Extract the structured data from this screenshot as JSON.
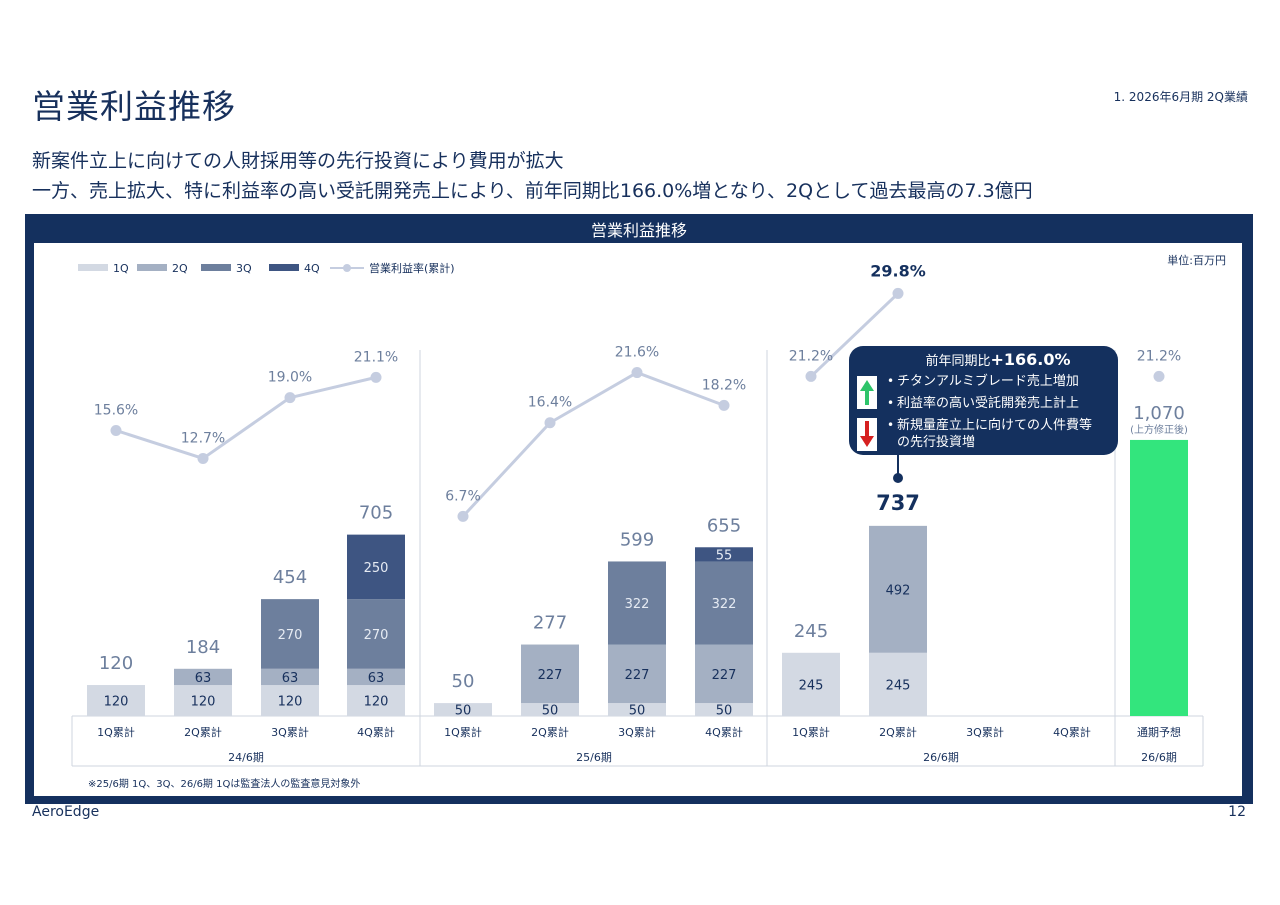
{
  "page": {
    "title": "営業利益推移",
    "section": "1. 2026年6月期 2Q業績",
    "subtitle_line1": "新案件立上に向けての人財採用等の先行投資により費用が拡大",
    "subtitle_line2": "一方、売上拡大、特に利益率の高い受託開発売上により、前年同期比166.0%増となり、2Qとして過去最高の7.3億円",
    "panel_title": "営業利益推移",
    "unit": "単位:百万円",
    "footnote": "※25/6期 1Q、3Q、26/6期 1Qは監査法人の監査意見対象外",
    "company": "AeroEdge",
    "page_number": "12"
  },
  "colors": {
    "1Q": "#d3d9e3",
    "2Q": "#a4b0c3",
    "3Q": "#6d7f9d",
    "4Q": "#3e5582",
    "line": "#c5cde0",
    "forecast": "#33e57d",
    "navy": "#14305e"
  },
  "callout": {
    "title_prefix": "前年同期比",
    "title_value": "+166.0%",
    "items": [
      {
        "icon": "up-arrow-icon",
        "text": "チタンアルミブレード売上増加"
      },
      {
        "icon": "none",
        "text": "利益率の高い受託開発売上計上"
      },
      {
        "icon": "down-arrow-icon",
        "text": "新規量産立上に向けての人件費等"
      },
      {
        "icon": "none",
        "text": "の先行投資増"
      }
    ]
  },
  "chart_data": {
    "type": "bar",
    "stacked": true,
    "legend": [
      "1Q",
      "2Q",
      "3Q",
      "4Q",
      "営業利益率(累計)"
    ],
    "legend_position": "top-left",
    "groups": [
      {
        "label": "24/6期",
        "categories": [
          "1Q累計",
          "2Q累計",
          "3Q累計",
          "4Q累計"
        ]
      },
      {
        "label": "25/6期",
        "categories": [
          "1Q累計",
          "2Q累計",
          "3Q累計",
          "4Q累計"
        ]
      },
      {
        "label": "26/6期",
        "categories": [
          "1Q累計",
          "2Q累計",
          "3Q累計",
          "4Q累計"
        ]
      },
      {
        "label": "26/6期",
        "categories": [
          "通期予想"
        ]
      }
    ],
    "bars": [
      {
        "group": 0,
        "segments": [
          120
        ],
        "total": "120"
      },
      {
        "group": 0,
        "segments": [
          120,
          63
        ],
        "total": "184"
      },
      {
        "group": 0,
        "segments": [
          120,
          63,
          270
        ],
        "total": "454"
      },
      {
        "group": 0,
        "segments": [
          120,
          63,
          270,
          250
        ],
        "total": "705"
      },
      {
        "group": 1,
        "segments": [
          50
        ],
        "total": "50"
      },
      {
        "group": 1,
        "segments": [
          50,
          227
        ],
        "total": "277"
      },
      {
        "group": 1,
        "segments": [
          50,
          227,
          322
        ],
        "total": "599"
      },
      {
        "group": 1,
        "segments": [
          50,
          227,
          322,
          55
        ],
        "total": "655"
      },
      {
        "group": 2,
        "segments": [
          245
        ],
        "total": "245"
      },
      {
        "group": 2,
        "segments": [
          245,
          492
        ],
        "total": "737"
      },
      {
        "group": 2,
        "segments": [],
        "total": ""
      },
      {
        "group": 2,
        "segments": [],
        "total": ""
      },
      {
        "group": 3,
        "segments": [
          1070
        ],
        "total": "1,070",
        "forecast": true,
        "note": "(上方修正後)"
      }
    ],
    "margin_series": {
      "name": "営業利益率(累計)",
      "values": [
        15.6,
        12.7,
        19.0,
        21.1,
        6.7,
        16.4,
        21.6,
        18.2,
        21.2,
        29.8,
        null,
        null,
        21.2
      ],
      "labels": [
        "15.6%",
        "12.7%",
        "19.0%",
        "21.1%",
        "6.7%",
        "16.4%",
        "21.6%",
        "18.2%",
        "21.2%",
        "29.8%",
        "",
        "",
        "21.2%"
      ]
    }
  }
}
